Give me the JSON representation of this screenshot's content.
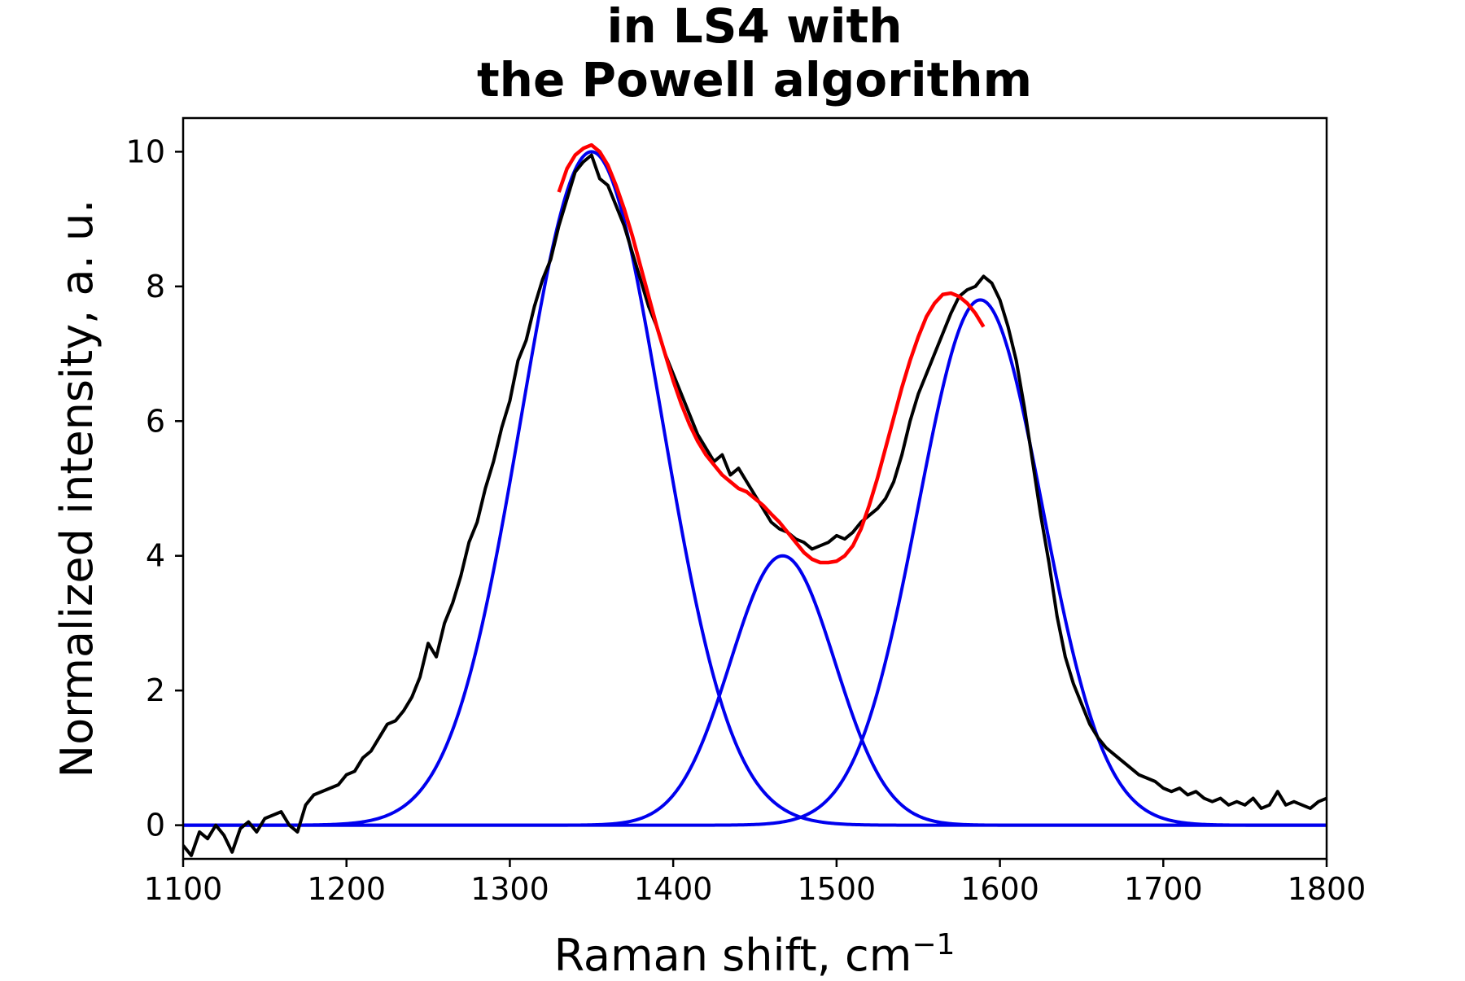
{
  "chart_data": {
    "type": "line",
    "title_lines": [
      "in LS4 with",
      "the Powell algorithm"
    ],
    "xlabel": "Raman shift, cm",
    "xlabel_sup": "−1",
    "ylabel": "Normalized intensity, a. u.",
    "xlim": [
      1100,
      1800
    ],
    "ylim": [
      -0.5,
      10.5
    ],
    "xticks": [
      1100,
      1200,
      1300,
      1400,
      1500,
      1600,
      1700,
      1800
    ],
    "xtick_labels": [
      "1100",
      "1200",
      "1300",
      "1400",
      "1500",
      "1600",
      "1700",
      "1800"
    ],
    "yticks": [
      0,
      2,
      4,
      6,
      8,
      10
    ],
    "ytick_labels": [
      "0",
      "2",
      "4",
      "6",
      "8",
      "10"
    ],
    "grid": false,
    "legend": "none",
    "colors": {
      "measured": "#000000",
      "fit": "#ff0000",
      "components": "#0000ee"
    },
    "measured_spectrum": {
      "x": [
        1100,
        1105,
        1110,
        1115,
        1120,
        1125,
        1130,
        1135,
        1140,
        1145,
        1150,
        1155,
        1160,
        1165,
        1170,
        1175,
        1180,
        1185,
        1190,
        1195,
        1200,
        1205,
        1210,
        1215,
        1220,
        1225,
        1230,
        1235,
        1240,
        1245,
        1250,
        1255,
        1260,
        1265,
        1270,
        1275,
        1280,
        1285,
        1290,
        1295,
        1300,
        1305,
        1310,
        1315,
        1320,
        1325,
        1330,
        1335,
        1340,
        1345,
        1350,
        1355,
        1360,
        1365,
        1370,
        1375,
        1380,
        1385,
        1390,
        1395,
        1400,
        1405,
        1410,
        1415,
        1420,
        1425,
        1430,
        1435,
        1440,
        1445,
        1450,
        1455,
        1460,
        1465,
        1470,
        1475,
        1480,
        1485,
        1490,
        1495,
        1500,
        1505,
        1510,
        1515,
        1520,
        1525,
        1530,
        1535,
        1540,
        1545,
        1550,
        1555,
        1560,
        1565,
        1570,
        1575,
        1580,
        1585,
        1590,
        1595,
        1600,
        1605,
        1610,
        1615,
        1620,
        1625,
        1630,
        1635,
        1640,
        1645,
        1650,
        1655,
        1660,
        1665,
        1670,
        1675,
        1680,
        1685,
        1690,
        1695,
        1700,
        1705,
        1710,
        1715,
        1720,
        1725,
        1730,
        1735,
        1740,
        1745,
        1750,
        1755,
        1760,
        1765,
        1770,
        1775,
        1780,
        1785,
        1790,
        1795,
        1800
      ],
      "y": [
        -0.3,
        -0.45,
        -0.1,
        -0.2,
        0.0,
        -0.15,
        -0.4,
        -0.05,
        0.05,
        -0.1,
        0.1,
        0.15,
        0.2,
        0.0,
        -0.1,
        0.3,
        0.45,
        0.5,
        0.55,
        0.6,
        0.75,
        0.8,
        1.0,
        1.1,
        1.3,
        1.5,
        1.55,
        1.7,
        1.9,
        2.2,
        2.7,
        2.5,
        3.0,
        3.3,
        3.7,
        4.2,
        4.5,
        5.0,
        5.4,
        5.9,
        6.3,
        6.9,
        7.2,
        7.7,
        8.1,
        8.4,
        8.9,
        9.3,
        9.7,
        9.85,
        9.95,
        9.6,
        9.5,
        9.2,
        8.9,
        8.5,
        8.1,
        7.7,
        7.4,
        7.0,
        6.7,
        6.4,
        6.1,
        5.8,
        5.6,
        5.4,
        5.5,
        5.2,
        5.3,
        5.1,
        4.9,
        4.7,
        4.5,
        4.4,
        4.35,
        4.25,
        4.2,
        4.1,
        4.15,
        4.2,
        4.3,
        4.25,
        4.35,
        4.5,
        4.6,
        4.7,
        4.85,
        5.1,
        5.5,
        6.0,
        6.4,
        6.7,
        7.0,
        7.3,
        7.6,
        7.85,
        7.95,
        8.0,
        8.15,
        8.05,
        7.8,
        7.4,
        6.9,
        6.2,
        5.4,
        4.6,
        3.9,
        3.1,
        2.5,
        2.1,
        1.8,
        1.5,
        1.3,
        1.15,
        1.05,
        0.95,
        0.85,
        0.75,
        0.7,
        0.65,
        0.55,
        0.5,
        0.55,
        0.45,
        0.5,
        0.4,
        0.35,
        0.4,
        0.3,
        0.35,
        0.3,
        0.4,
        0.25,
        0.3,
        0.5,
        0.3,
        0.35,
        0.3,
        0.25,
        0.35,
        0.4
      ]
    },
    "fit_curve": {
      "x": [
        1330,
        1335,
        1340,
        1345,
        1350,
        1355,
        1360,
        1365,
        1370,
        1375,
        1380,
        1385,
        1390,
        1395,
        1400,
        1405,
        1410,
        1415,
        1420,
        1425,
        1430,
        1435,
        1440,
        1445,
        1450,
        1455,
        1460,
        1465,
        1470,
        1475,
        1480,
        1485,
        1490,
        1495,
        1500,
        1505,
        1510,
        1515,
        1520,
        1525,
        1530,
        1535,
        1540,
        1545,
        1550,
        1555,
        1560,
        1565,
        1570,
        1575,
        1580,
        1585,
        1590
      ],
      "y": [
        9.4,
        9.75,
        9.95,
        10.05,
        10.1,
        10.0,
        9.8,
        9.5,
        9.15,
        8.75,
        8.3,
        7.85,
        7.4,
        7.0,
        6.6,
        6.25,
        5.95,
        5.7,
        5.5,
        5.35,
        5.2,
        5.1,
        5.0,
        4.95,
        4.85,
        4.75,
        4.62,
        4.5,
        4.35,
        4.2,
        4.05,
        3.95,
        3.9,
        3.9,
        3.92,
        4.0,
        4.15,
        4.4,
        4.75,
        5.15,
        5.6,
        6.05,
        6.5,
        6.9,
        7.25,
        7.55,
        7.75,
        7.88,
        7.9,
        7.85,
        7.75,
        7.6,
        7.4
      ]
    },
    "components": [
      {
        "center": 1350,
        "amplitude": 10.0,
        "sigma": 43
      },
      {
        "center": 1467,
        "amplitude": 4.0,
        "sigma": 32
      },
      {
        "center": 1588,
        "amplitude": 7.8,
        "sigma": 38
      }
    ]
  }
}
